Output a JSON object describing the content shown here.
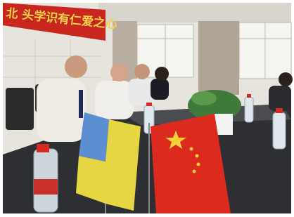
{
  "banner": {
    "text": "北 头学识有仁爱之心"
  }
}
